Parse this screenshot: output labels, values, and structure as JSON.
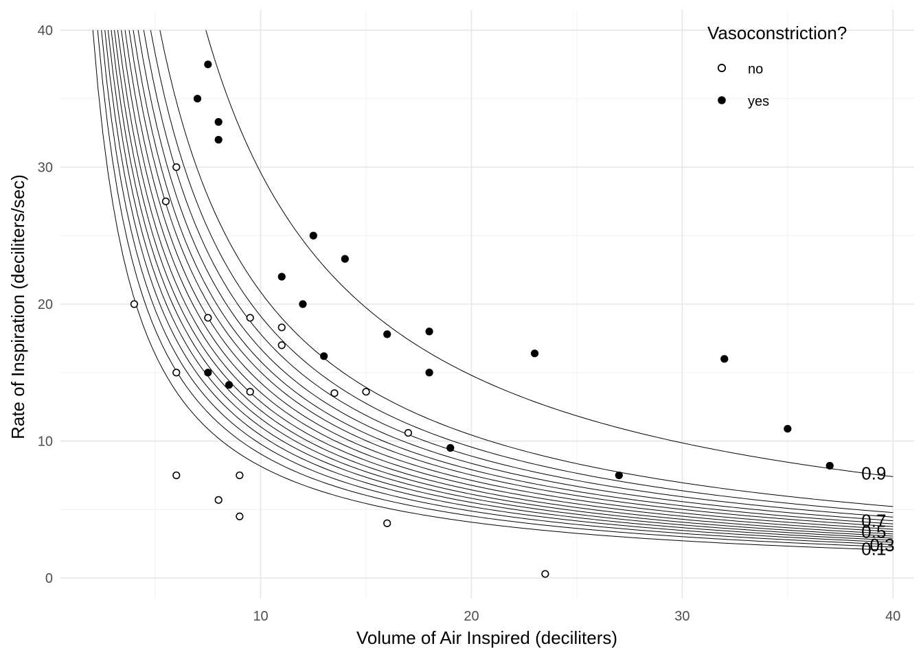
{
  "chart_data": {
    "type": "scatter",
    "title": "",
    "xlabel": "Volume of Air Inspired (deciliters)",
    "ylabel": "Rate of Inspiration (deciliters/sec)",
    "xlim": [
      0.5,
      41
    ],
    "ylim": [
      -1.5,
      41.5
    ],
    "x_ticks": [
      10,
      20,
      30,
      40
    ],
    "y_ticks": [
      0,
      10,
      20,
      30,
      40
    ],
    "grid": true,
    "legend": {
      "title": "Vasoconstriction?",
      "position": "top-right",
      "entries": [
        {
          "label": "no",
          "marker": "open-circle"
        },
        {
          "label": "yes",
          "marker": "filled-circle"
        }
      ]
    },
    "series": [
      {
        "name": "no",
        "marker": "open-circle",
        "points": [
          [
            4,
            20
          ],
          [
            5.5,
            27.5
          ],
          [
            6,
            30
          ],
          [
            7.5,
            19
          ],
          [
            6,
            15
          ],
          [
            6,
            7.5
          ],
          [
            8,
            5.7
          ],
          [
            9,
            7.5
          ],
          [
            9,
            4.5
          ],
          [
            9.5,
            19
          ],
          [
            9.5,
            13.6
          ],
          [
            11,
            18.3
          ],
          [
            11,
            17
          ],
          [
            13.5,
            13.5
          ],
          [
            15,
            13.6
          ],
          [
            17,
            10.6
          ],
          [
            16,
            4
          ],
          [
            23.5,
            0.3
          ]
        ]
      },
      {
        "name": "yes",
        "marker": "filled-circle",
        "points": [
          [
            7.5,
            37.5
          ],
          [
            7,
            35
          ],
          [
            8,
            33.3
          ],
          [
            8,
            32
          ],
          [
            7.5,
            15
          ],
          [
            8.5,
            14.1
          ],
          [
            11,
            22
          ],
          [
            12,
            20
          ],
          [
            12.5,
            25
          ],
          [
            14,
            23.3
          ],
          [
            13,
            16.2
          ],
          [
            16,
            17.8
          ],
          [
            18,
            18
          ],
          [
            18,
            15
          ],
          [
            19,
            9.5
          ],
          [
            23,
            16.4
          ],
          [
            27,
            7.5
          ],
          [
            32,
            16
          ],
          [
            35,
            10.9
          ],
          [
            37,
            8.2
          ]
        ]
      }
    ],
    "contours": {
      "description": "Fitted probability contours of the form x*y = k",
      "levels": [
        0.1,
        0.15,
        0.2,
        0.25,
        0.3,
        0.35,
        0.4,
        0.45,
        0.5,
        0.55,
        0.6,
        0.65,
        0.7,
        0.75,
        0.8,
        0.85,
        0.9
      ],
      "k_values": [
        81.6,
        90.6,
        97.8,
        104.3,
        110.4,
        116.4,
        122.4,
        128.7,
        135.5,
        142.6,
        150.4,
        158.2,
        167.4,
        178.1,
        191.2,
        208.8,
        296.0
      ],
      "labels": [
        {
          "text": "0.1",
          "level": 0.1
        },
        {
          "text": "0.3",
          "level": 0.3
        },
        {
          "text": "0.5",
          "level": 0.5
        },
        {
          "text": "0.7",
          "level": 0.7
        },
        {
          "text": "0.9",
          "level": 0.9
        }
      ]
    }
  }
}
